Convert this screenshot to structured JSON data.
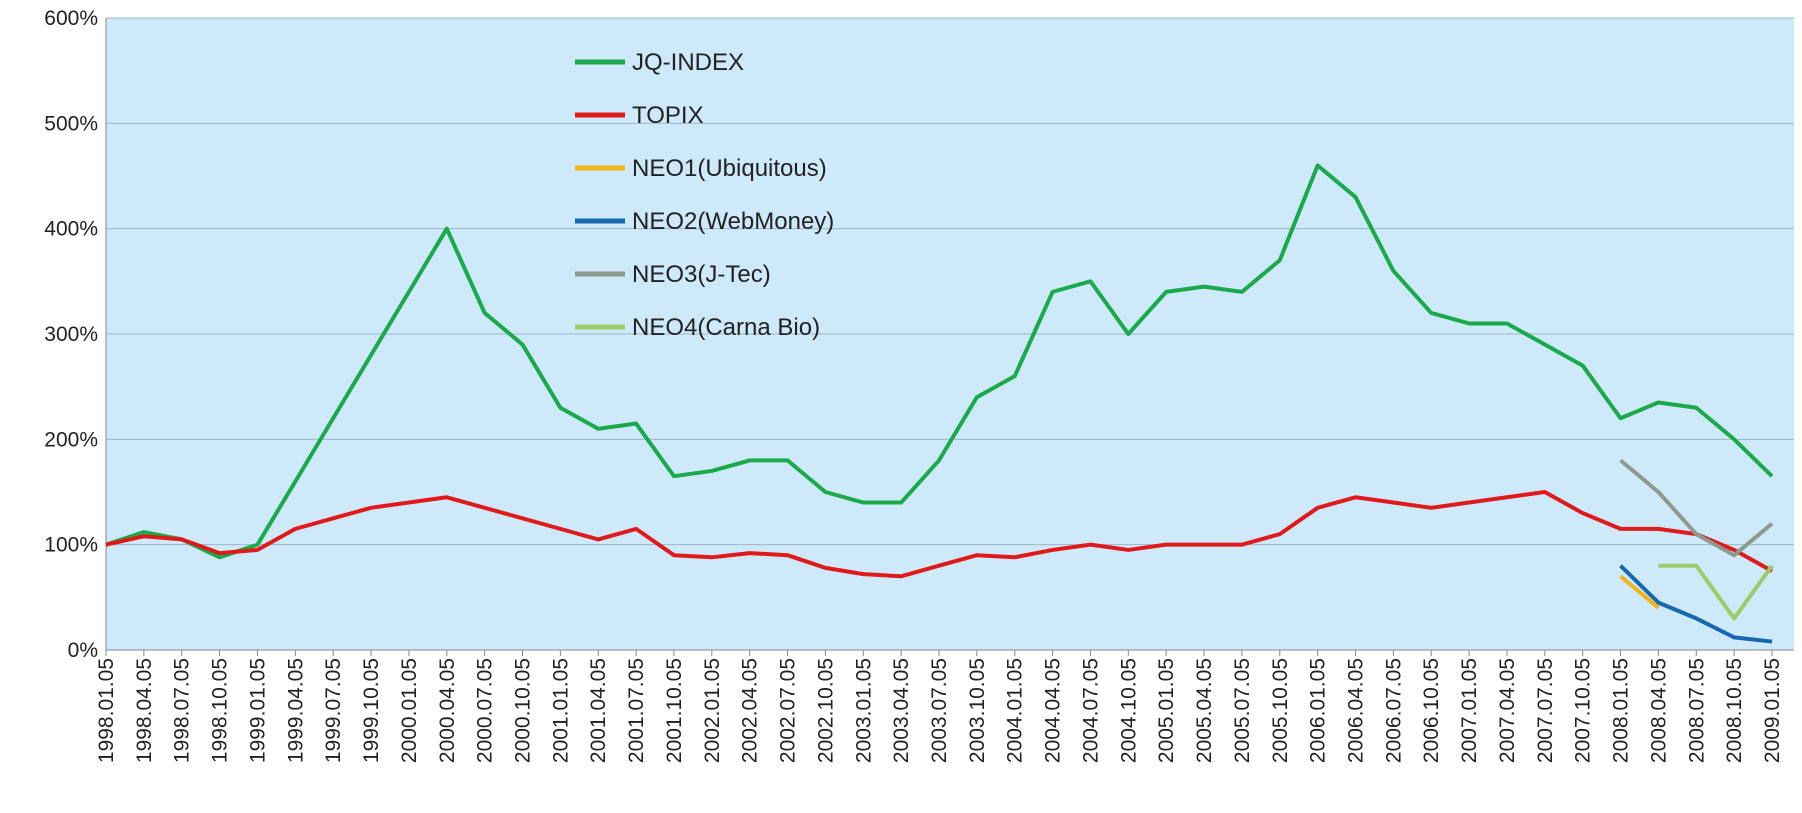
{
  "chart_data": {
    "type": "line",
    "categories": [
      "1998.01.05",
      "1998.04.05",
      "1998.07.05",
      "1998.10.05",
      "1999.01.05",
      "1999.04.05",
      "1999.07.05",
      "1999.10.05",
      "2000.01.05",
      "2000.04.05",
      "2000.07.05",
      "2000.10.05",
      "2001.01.05",
      "2001.04.05",
      "2001.07.05",
      "2001.10.05",
      "2002.01.05",
      "2002.04.05",
      "2002.07.05",
      "2002.10.05",
      "2003.01.05",
      "2003.04.05",
      "2003.07.05",
      "2003.10.05",
      "2004.01.05",
      "2004.04.05",
      "2004.07.05",
      "2004.10.05",
      "2005.01.05",
      "2005.04.05",
      "2005.07.05",
      "2005.10.05",
      "2006.01.05",
      "2006.04.05",
      "2006.07.05",
      "2006.10.05",
      "2007.01.05",
      "2007.04.05",
      "2007.07.05",
      "2007.10.05",
      "2008.01.05",
      "2008.04.05",
      "2008.07.05",
      "2008.10.05",
      "2009.01.05"
    ],
    "series": [
      {
        "name": "JQ-INDEX",
        "color": "#1aaa4a",
        "values": [
          100,
          112,
          105,
          88,
          100,
          160,
          220,
          280,
          340,
          400,
          320,
          290,
          230,
          210,
          215,
          165,
          170,
          180,
          180,
          150,
          140,
          140,
          180,
          240,
          260,
          340,
          350,
          300,
          340,
          345,
          340,
          370,
          460,
          430,
          360,
          320,
          310,
          310,
          290,
          270,
          220,
          235,
          230,
          200,
          165
        ]
      },
      {
        "name": "TOPIX",
        "color": "#e01a1a",
        "values": [
          100,
          108,
          105,
          92,
          95,
          115,
          125,
          135,
          140,
          145,
          135,
          125,
          115,
          105,
          115,
          90,
          88,
          92,
          90,
          78,
          72,
          70,
          80,
          90,
          88,
          95,
          100,
          95,
          100,
          100,
          100,
          110,
          135,
          145,
          140,
          135,
          140,
          145,
          150,
          130,
          115,
          115,
          110,
          95,
          75
        ]
      },
      {
        "name": "NEO1(Ubiquitous)",
        "color": "#f2b417",
        "values": [
          null,
          null,
          null,
          null,
          null,
          null,
          null,
          null,
          null,
          null,
          null,
          null,
          null,
          null,
          null,
          null,
          null,
          null,
          null,
          null,
          null,
          null,
          null,
          null,
          null,
          null,
          null,
          null,
          null,
          null,
          null,
          null,
          null,
          null,
          null,
          null,
          null,
          null,
          null,
          null,
          70,
          40,
          null,
          null,
          null
        ]
      },
      {
        "name": "NEO2(WebMoney)",
        "color": "#1668b0",
        "values": [
          null,
          null,
          null,
          null,
          null,
          null,
          null,
          null,
          null,
          null,
          null,
          null,
          null,
          null,
          null,
          null,
          null,
          null,
          null,
          null,
          null,
          null,
          null,
          null,
          null,
          null,
          null,
          null,
          null,
          null,
          null,
          null,
          null,
          null,
          null,
          null,
          null,
          null,
          null,
          null,
          80,
          45,
          30,
          12,
          8
        ]
      },
      {
        "name": "NEO3(J-Tec)",
        "color": "#8f9a8f",
        "values": [
          null,
          null,
          null,
          null,
          null,
          null,
          null,
          null,
          null,
          null,
          null,
          null,
          null,
          null,
          null,
          null,
          null,
          null,
          null,
          null,
          null,
          null,
          null,
          null,
          null,
          null,
          null,
          null,
          null,
          null,
          null,
          null,
          null,
          null,
          null,
          null,
          null,
          null,
          null,
          null,
          180,
          150,
          110,
          90,
          120
        ]
      },
      {
        "name": "NEO4(Carna Bio)",
        "color": "#9ccc6a",
        "values": [
          null,
          null,
          null,
          null,
          null,
          null,
          null,
          null,
          null,
          null,
          null,
          null,
          null,
          null,
          null,
          null,
          null,
          null,
          null,
          null,
          null,
          null,
          null,
          null,
          null,
          null,
          null,
          null,
          null,
          null,
          null,
          null,
          null,
          null,
          null,
          null,
          null,
          null,
          null,
          null,
          null,
          80,
          80,
          30,
          80
        ]
      }
    ],
    "ylim": [
      0,
      600
    ],
    "yticks": [
      {
        "value": 0,
        "label": "0%"
      },
      {
        "value": 100,
        "label": "100%"
      },
      {
        "value": 200,
        "label": "200%"
      },
      {
        "value": 300,
        "label": "300%"
      },
      {
        "value": 400,
        "label": "400%"
      },
      {
        "value": 500,
        "label": "500%"
      },
      {
        "value": 600,
        "label": "600%"
      }
    ],
    "grid": true
  }
}
